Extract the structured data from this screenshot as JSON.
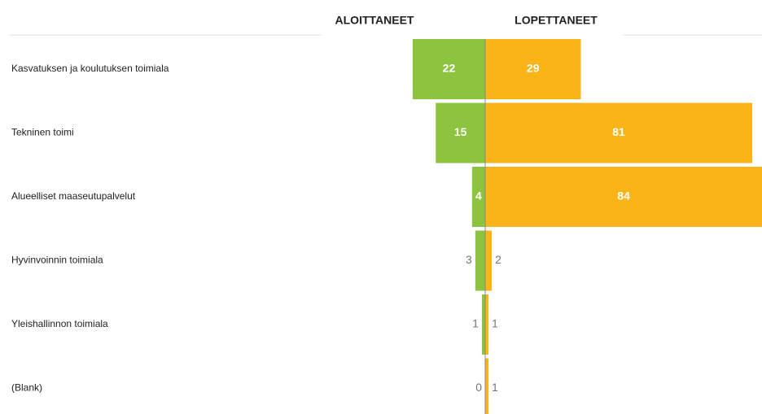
{
  "chart_data": {
    "type": "butterfly",
    "categories": [
      "Kasvatuksen ja koulutuksen toimiala",
      "Tekninen toimi",
      "Alueelliset maaseutupalvelut",
      "Hyvinvoinnin toimiala",
      "Yleishallinnon toimiala",
      "(Blank)"
    ],
    "series": [
      {
        "name": "ALOITTANEET",
        "color": "#8cc43f",
        "values": [
          22,
          15,
          4,
          3,
          1,
          0
        ]
      },
      {
        "name": "LOPETTANEET",
        "color": "#fbb417",
        "values": [
          29,
          81,
          84,
          2,
          1,
          1
        ]
      }
    ]
  }
}
